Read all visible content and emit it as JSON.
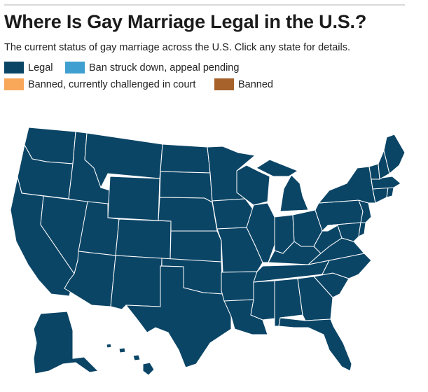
{
  "title": "Where Is Gay Marriage Legal in the U.S.?",
  "subtitle": "The current status of gay marriage across the U.S. Click any state for details.",
  "legend": [
    {
      "label": "Legal",
      "color": "#0b4566"
    },
    {
      "label": "Ban struck down, appeal pending",
      "color": "#3f9fd1"
    },
    {
      "label": "Banned, currently challenged in court",
      "color": "#f9a85a"
    },
    {
      "label": "Banned",
      "color": "#a6622a"
    }
  ],
  "map": {
    "legal_color": "#0b4566",
    "states": [
      {
        "code": "WA",
        "status": "Legal"
      },
      {
        "code": "OR",
        "status": "Legal"
      },
      {
        "code": "CA",
        "status": "Legal"
      },
      {
        "code": "ID",
        "status": "Legal"
      },
      {
        "code": "NV",
        "status": "Legal"
      },
      {
        "code": "MT",
        "status": "Legal"
      },
      {
        "code": "WY",
        "status": "Legal"
      },
      {
        "code": "UT",
        "status": "Legal"
      },
      {
        "code": "AZ",
        "status": "Legal"
      },
      {
        "code": "CO",
        "status": "Legal"
      },
      {
        "code": "NM",
        "status": "Legal"
      },
      {
        "code": "ND",
        "status": "Legal"
      },
      {
        "code": "SD",
        "status": "Legal"
      },
      {
        "code": "NE",
        "status": "Legal"
      },
      {
        "code": "KS",
        "status": "Legal"
      },
      {
        "code": "OK",
        "status": "Legal"
      },
      {
        "code": "TX",
        "status": "Legal"
      },
      {
        "code": "MN",
        "status": "Legal"
      },
      {
        "code": "IA",
        "status": "Legal"
      },
      {
        "code": "MO",
        "status": "Legal"
      },
      {
        "code": "AR",
        "status": "Legal"
      },
      {
        "code": "LA",
        "status": "Legal"
      },
      {
        "code": "WI",
        "status": "Legal"
      },
      {
        "code": "IL",
        "status": "Legal"
      },
      {
        "code": "MS",
        "status": "Legal"
      },
      {
        "code": "MI",
        "status": "Legal"
      },
      {
        "code": "IN",
        "status": "Legal"
      },
      {
        "code": "KY",
        "status": "Legal"
      },
      {
        "code": "TN",
        "status": "Legal"
      },
      {
        "code": "AL",
        "status": "Legal"
      },
      {
        "code": "OH",
        "status": "Legal"
      },
      {
        "code": "GA",
        "status": "Legal"
      },
      {
        "code": "FL",
        "status": "Legal"
      },
      {
        "code": "SC",
        "status": "Legal"
      },
      {
        "code": "NC",
        "status": "Legal"
      },
      {
        "code": "VA",
        "status": "Legal"
      },
      {
        "code": "WV",
        "status": "Legal"
      },
      {
        "code": "PA",
        "status": "Legal"
      },
      {
        "code": "NY",
        "status": "Legal"
      },
      {
        "code": "VT",
        "status": "Legal"
      },
      {
        "code": "NH",
        "status": "Legal"
      },
      {
        "code": "ME",
        "status": "Legal"
      },
      {
        "code": "MA",
        "status": "Legal"
      },
      {
        "code": "RI",
        "status": "Legal"
      },
      {
        "code": "CT",
        "status": "Legal"
      },
      {
        "code": "NJ",
        "status": "Legal"
      },
      {
        "code": "DE",
        "status": "Legal"
      },
      {
        "code": "MD",
        "status": "Legal"
      },
      {
        "code": "AK",
        "status": "Legal"
      },
      {
        "code": "HI",
        "status": "Legal"
      }
    ]
  }
}
